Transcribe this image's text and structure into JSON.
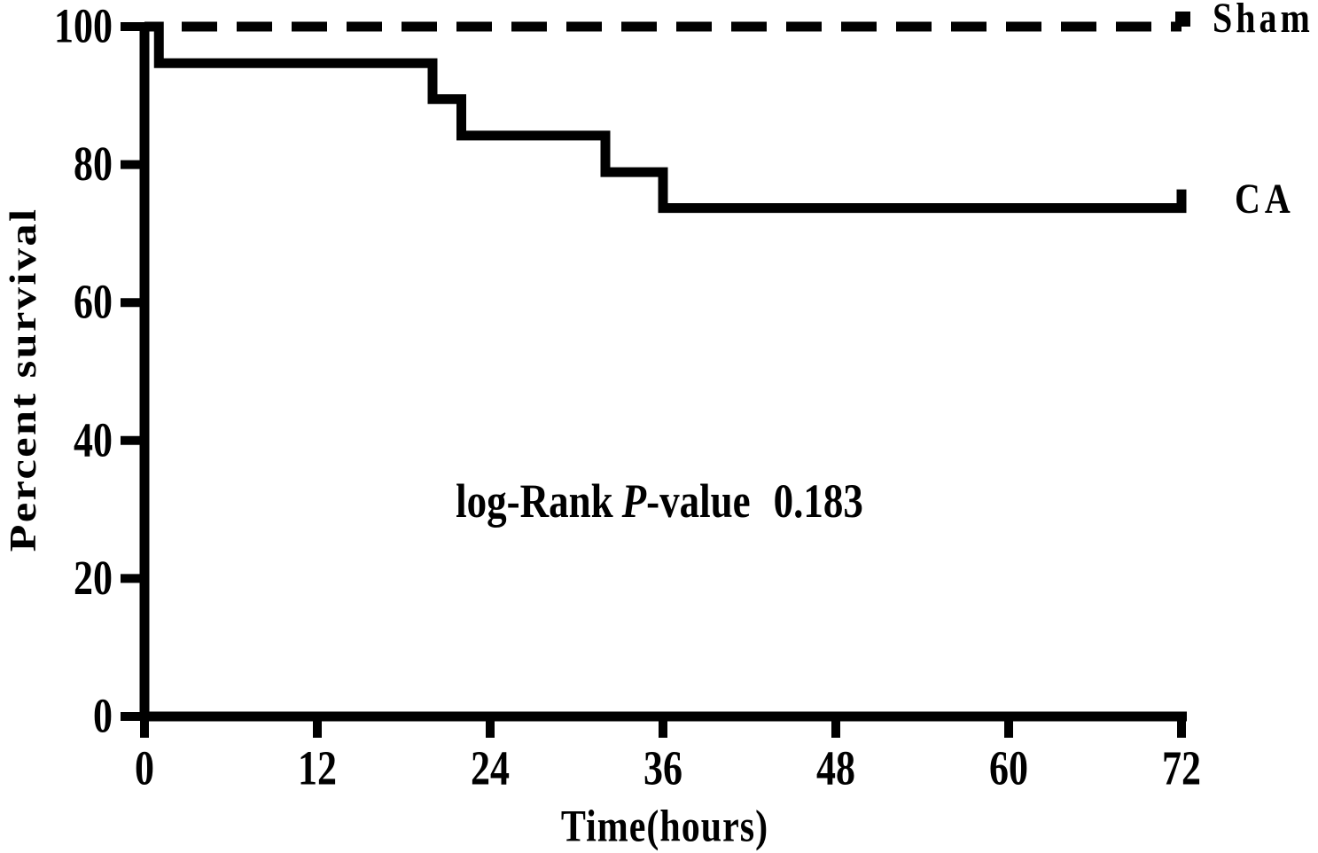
{
  "figure": {
    "background": "#ffffff",
    "ink": "#000000"
  },
  "chart_data": {
    "type": "line",
    "subtype": "kaplan_meier_step_survival",
    "title": "",
    "xlabel": "Time(hours)",
    "ylabel": "Percent survival",
    "xlim": [
      0,
      72
    ],
    "ylim": [
      0,
      100
    ],
    "x_ticks": [
      0,
      12,
      24,
      36,
      48,
      60,
      72
    ],
    "y_ticks": [
      0,
      20,
      40,
      60,
      80,
      100
    ],
    "grid": false,
    "legend_position": "at-line-ends-right",
    "series": [
      {
        "name": "Sham",
        "line_style": "dashed",
        "end_marker": "filled-square",
        "points": [
          {
            "t": 0,
            "s": 100
          },
          {
            "t": 72,
            "s": 100
          }
        ]
      },
      {
        "name": "CA",
        "line_style": "solid",
        "end_marker": "up-tick",
        "points": [
          {
            "t": 0,
            "s": 100
          },
          {
            "t": 1,
            "s": 94.7
          },
          {
            "t": 20,
            "s": 89.5
          },
          {
            "t": 22,
            "s": 84.2
          },
          {
            "t": 32,
            "s": 78.9
          },
          {
            "t": 36,
            "s": 73.7
          },
          {
            "t": 72,
            "s": 73.7
          }
        ]
      }
    ],
    "annotation": {
      "prefix": "log-Rank",
      "italic_var": "P",
      "suffix": "-value",
      "value": "0.183"
    }
  }
}
